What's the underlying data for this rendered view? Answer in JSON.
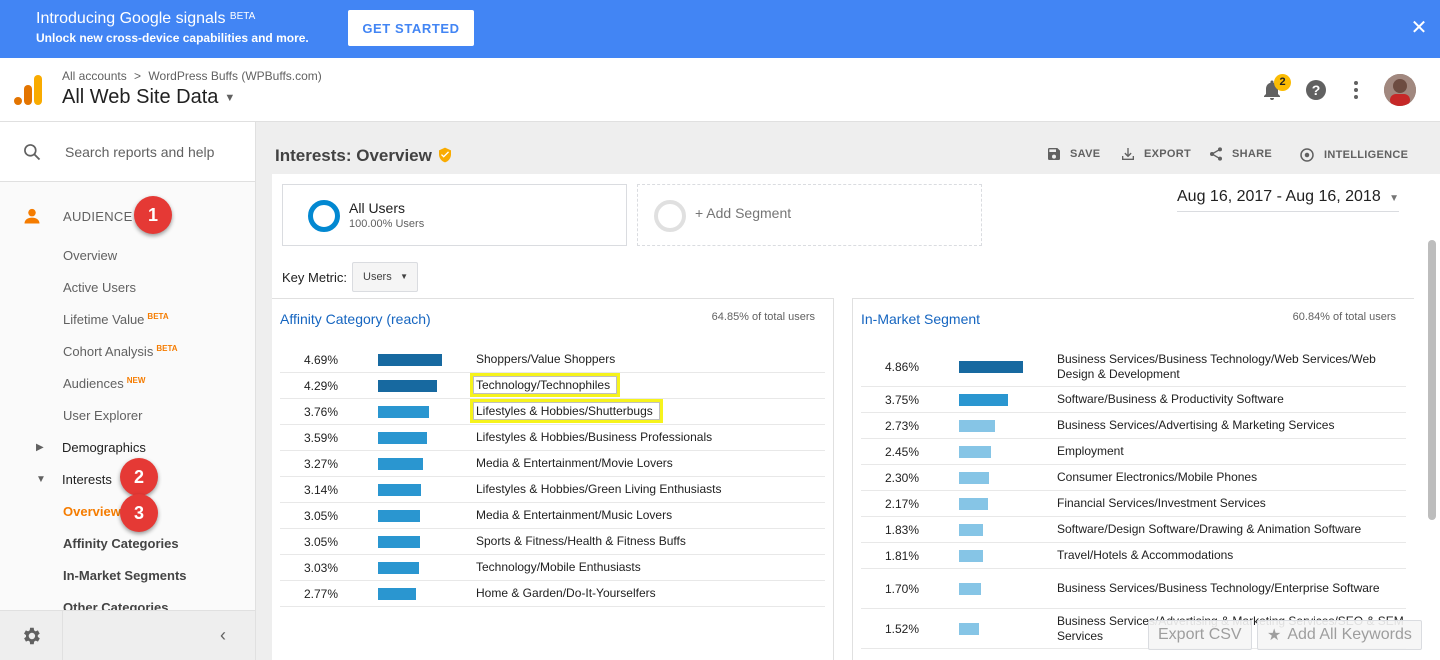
{
  "banner": {
    "title": "Introducing Google signals",
    "title_badge": "BETA",
    "subtitle": "Unlock new cross-device capabilities and more.",
    "cta": "GET STARTED",
    "close": "✕"
  },
  "header": {
    "breadcrumb_root": "All accounts",
    "breadcrumb_sep": ">",
    "breadcrumb_account": "WordPress Buffs (WPBuffs.com)",
    "view_name": "All Web Site Data",
    "notification_count": "2"
  },
  "sidebar": {
    "search_placeholder": "Search reports and help",
    "section_label": "AUDIENCE",
    "items": [
      {
        "label": "Overview",
        "badge": ""
      },
      {
        "label": "Active Users",
        "badge": ""
      },
      {
        "label": "Lifetime Value",
        "badge": "BETA"
      },
      {
        "label": "Cohort Analysis",
        "badge": "BETA"
      },
      {
        "label": "Audiences",
        "badge": "NEW"
      },
      {
        "label": "User Explorer",
        "badge": ""
      },
      {
        "label": "Demographics",
        "badge": ""
      },
      {
        "label": "Interests",
        "badge": ""
      },
      {
        "label": "Overview",
        "badge": ""
      },
      {
        "label": "Affinity Categories",
        "badge": ""
      },
      {
        "label": "In-Market Segments",
        "badge": ""
      },
      {
        "label": "Other Categories",
        "badge": ""
      }
    ],
    "steps": [
      "1",
      "2",
      "3"
    ]
  },
  "page": {
    "title": "Interests: Overview",
    "actions": [
      "SAVE",
      "EXPORT",
      "SHARE",
      "INTELLIGENCE"
    ],
    "segment_title": "All Users",
    "segment_sub": "100.00% Users",
    "add_segment": "+ Add Segment",
    "date_range": "Aug 16, 2017 - Aug 16, 2018",
    "key_metric_label": "Key Metric:",
    "key_metric_value": "Users",
    "export_csv": "Export CSV",
    "add_keywords": "Add All Keywords"
  },
  "affinity": {
    "title": "Affinity Category (reach)",
    "total": "64.85% of total users",
    "rows": [
      {
        "pct": "4.69%",
        "value": 4.69,
        "cat": "Shoppers/Value Shoppers"
      },
      {
        "pct": "4.29%",
        "value": 4.29,
        "cat": "Technology/Technophiles"
      },
      {
        "pct": "3.76%",
        "value": 3.76,
        "cat": "Lifestyles & Hobbies/Shutterbugs"
      },
      {
        "pct": "3.59%",
        "value": 3.59,
        "cat": "Lifestyles & Hobbies/Business Professionals"
      },
      {
        "pct": "3.27%",
        "value": 3.27,
        "cat": "Media & Entertainment/Movie Lovers"
      },
      {
        "pct": "3.14%",
        "value": 3.14,
        "cat": "Lifestyles & Hobbies/Green Living Enthusiasts"
      },
      {
        "pct": "3.05%",
        "value": 3.05,
        "cat": "Media & Entertainment/Music Lovers"
      },
      {
        "pct": "3.05%",
        "value": 3.05,
        "cat": "Sports & Fitness/Health & Fitness Buffs"
      },
      {
        "pct": "3.03%",
        "value": 3.03,
        "cat": "Technology/Mobile Enthusiasts"
      },
      {
        "pct": "2.77%",
        "value": 2.77,
        "cat": "Home & Garden/Do-It-Yourselfers"
      }
    ]
  },
  "inmarket": {
    "title": "In-Market Segment",
    "total": "60.84% of total users",
    "rows": [
      {
        "pct": "4.86%",
        "value": 4.86,
        "cat": "Business Services/Business Technology/Web Services/Web Design & Development"
      },
      {
        "pct": "3.75%",
        "value": 3.75,
        "cat": "Software/Business & Productivity Software"
      },
      {
        "pct": "2.73%",
        "value": 2.73,
        "cat": "Business Services/Advertising & Marketing Services"
      },
      {
        "pct": "2.45%",
        "value": 2.45,
        "cat": "Employment"
      },
      {
        "pct": "2.30%",
        "value": 2.3,
        "cat": "Consumer Electronics/Mobile Phones"
      },
      {
        "pct": "2.17%",
        "value": 2.17,
        "cat": "Financial Services/Investment Services"
      },
      {
        "pct": "1.83%",
        "value": 1.83,
        "cat": "Software/Design Software/Drawing & Animation Software"
      },
      {
        "pct": "1.81%",
        "value": 1.81,
        "cat": "Travel/Hotels & Accommodations"
      },
      {
        "pct": "1.70%",
        "value": 1.7,
        "cat": "Business Services/Business Technology/Enterprise Software"
      },
      {
        "pct": "1.52%",
        "value": 1.52,
        "cat": "Business Services/Advertising & Marketing Services/SEO & SEM Services"
      }
    ]
  },
  "colors": {
    "banner": "#4285f4",
    "accent": "#f57c00",
    "bar_dark": "#1769a0",
    "bar_mid": "#2a96d0",
    "bar_light": "#86c5e6",
    "highlight": "#f6f31c",
    "step_bubble": "#e53935"
  }
}
